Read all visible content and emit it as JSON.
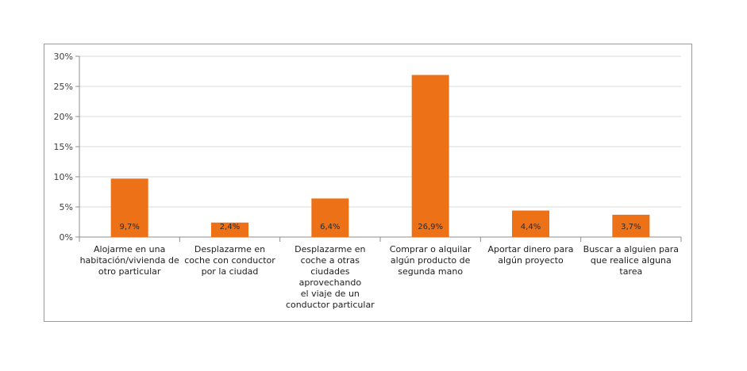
{
  "chart_data": {
    "type": "bar",
    "title": "",
    "xlabel": "",
    "ylabel": "",
    "ylim": [
      0,
      30
    ],
    "yticks": [
      0,
      5,
      10,
      15,
      20,
      25,
      30
    ],
    "ytick_labels": [
      "0%",
      "5%",
      "10%",
      "15%",
      "20%",
      "25%",
      "30%"
    ],
    "grid": true,
    "bar_color": "#ED7117",
    "categories": [
      [
        "Alojarme en una",
        "habitación/vivienda de",
        "otro particular"
      ],
      [
        "Desplazarme en",
        "coche con conductor",
        "por la ciudad"
      ],
      [
        "Desplazarme en",
        "coche a otras",
        "ciudades",
        "aprovechando",
        "el viaje de un",
        "conductor particular"
      ],
      [
        "Comprar o alquilar",
        "algún producto de",
        "segunda mano"
      ],
      [
        "Aportar dinero para",
        "algún proyecto"
      ],
      [
        "Buscar a alguien para",
        "que realice alguna",
        "tarea"
      ]
    ],
    "values": [
      9.7,
      2.4,
      6.4,
      26.9,
      4.4,
      3.7
    ],
    "data_labels": [
      "9,7%",
      "2,4%",
      "6,4%",
      "26,9%",
      "4,4%",
      "3,7%"
    ]
  }
}
